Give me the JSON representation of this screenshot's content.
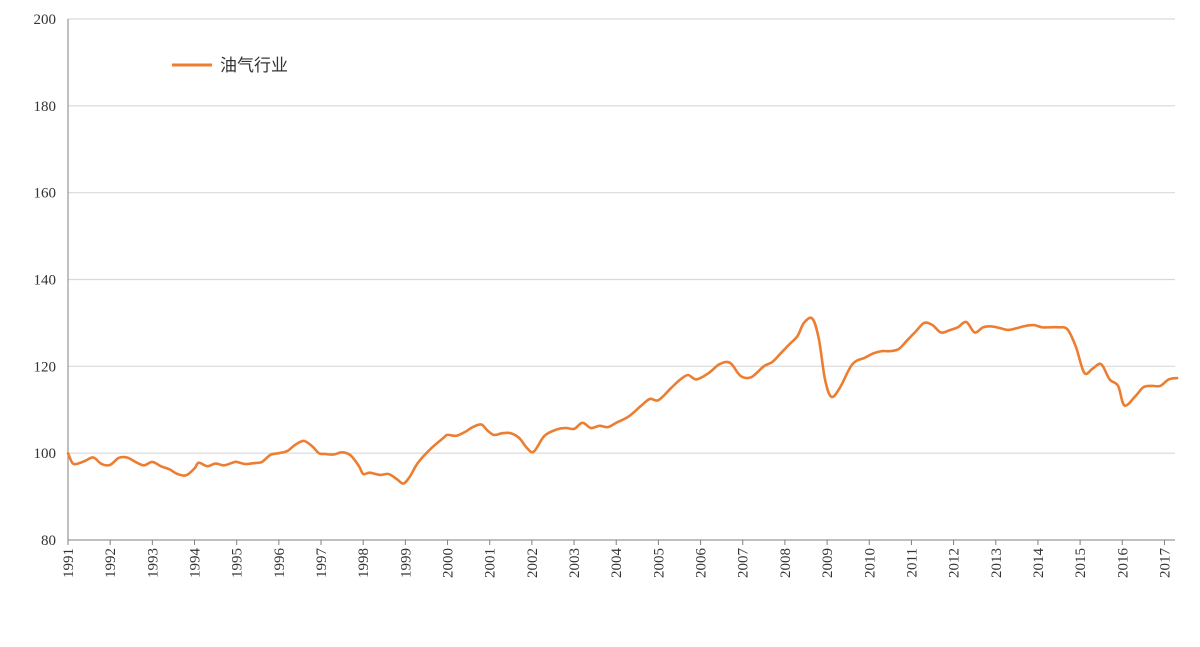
{
  "chart_data": {
    "type": "line",
    "title": "",
    "xlabel": "",
    "ylabel": "",
    "ylim": [
      80,
      200
    ],
    "y_ticks": [
      80,
      100,
      120,
      140,
      160,
      180,
      200
    ],
    "x_tick_labels": [
      "1991",
      "1992",
      "1993",
      "1994",
      "1995",
      "1996",
      "1997",
      "1998",
      "1999",
      "2000",
      "2001",
      "2002",
      "2003",
      "2004",
      "2005",
      "2006",
      "2007",
      "2008",
      "2009",
      "2010",
      "2011",
      "2012",
      "2013",
      "2014",
      "2015",
      "2016",
      "2017"
    ],
    "grid": "horizontal",
    "legend": "top-left",
    "colors": {
      "series": "#ED7D31",
      "grid": "#D9D9D9",
      "axis": "#808080"
    },
    "series": [
      {
        "name": "油气行业",
        "x": [
          1991.0,
          1991.1,
          1991.2,
          1991.4,
          1991.6,
          1991.8,
          1992.0,
          1992.2,
          1992.4,
          1992.6,
          1992.8,
          1993.0,
          1993.2,
          1993.4,
          1993.6,
          1993.8,
          1994.0,
          1994.1,
          1994.3,
          1994.5,
          1994.7,
          1994.9,
          1995.0,
          1995.2,
          1995.4,
          1995.6,
          1995.8,
          1996.0,
          1996.2,
          1996.4,
          1996.6,
          1996.8,
          1996.95,
          1997.1,
          1997.3,
          1997.5,
          1997.7,
          1997.9,
          1998.0,
          1998.15,
          1998.4,
          1998.6,
          1998.8,
          1998.95,
          1999.1,
          1999.3,
          1999.6,
          1999.9,
          2000.0,
          2000.2,
          2000.4,
          2000.6,
          2000.8,
          2000.95,
          2001.1,
          2001.3,
          2001.5,
          2001.7,
          2001.9,
          2002.05,
          2002.3,
          2002.6,
          2002.8,
          2003.0,
          2003.2,
          2003.4,
          2003.6,
          2003.8,
          2004.0,
          2004.3,
          2004.6,
          2004.8,
          2005.0,
          2005.3,
          2005.5,
          2005.7,
          2005.9,
          2006.2,
          2006.45,
          2006.7,
          2006.95,
          2007.2,
          2007.5,
          2007.7,
          2007.9,
          2008.1,
          2008.3,
          2008.45,
          2008.65,
          2008.8,
          2008.95,
          2009.1,
          2009.3,
          2009.6,
          2009.9,
          2010.1,
          2010.3,
          2010.5,
          2010.7,
          2010.9,
          2011.1,
          2011.3,
          2011.5,
          2011.7,
          2011.9,
          2012.1,
          2012.3,
          2012.5,
          2012.7,
          2012.9,
          2013.1,
          2013.3,
          2013.5,
          2013.7,
          2013.9,
          2014.1,
          2014.3,
          2014.5,
          2014.7,
          2014.9,
          2015.1,
          2015.3,
          2015.5,
          2015.7,
          2015.9,
          2016.05,
          2016.3,
          2016.5,
          2016.7,
          2016.9,
          2017.1,
          2017.3
        ],
        "values": [
          100,
          97.8,
          97.5,
          98.2,
          99.0,
          97.5,
          97.3,
          98.9,
          99.0,
          98.0,
          97.2,
          98.0,
          97.0,
          96.3,
          95.2,
          94.9,
          96.5,
          97.8,
          97.0,
          97.6,
          97.2,
          97.8,
          98.0,
          97.5,
          97.7,
          98.0,
          99.6,
          100.0,
          100.5,
          102.0,
          102.8,
          101.5,
          100.0,
          99.8,
          99.7,
          100.2,
          99.5,
          97.0,
          95.2,
          95.5,
          95.0,
          95.2,
          94.0,
          93.0,
          94.5,
          97.8,
          101.0,
          103.5,
          104.2,
          104.0,
          104.8,
          106.0,
          106.6,
          105.2,
          104.2,
          104.6,
          104.6,
          103.5,
          101.0,
          100.4,
          104.0,
          105.5,
          105.8,
          105.6,
          107.0,
          105.8,
          106.3,
          106.0,
          107.0,
          108.5,
          111.0,
          112.5,
          112.2,
          115.0,
          116.8,
          118.0,
          117.0,
          118.5,
          120.5,
          120.8,
          117.8,
          117.5,
          120.0,
          121.0,
          123.0,
          125.0,
          127.0,
          130.0,
          131.0,
          126.5,
          117.0,
          113.0,
          115.0,
          120.5,
          122.0,
          123.0,
          123.5,
          123.5,
          124.0,
          126.0,
          128.0,
          130.0,
          129.5,
          127.8,
          128.3,
          129.0,
          130.2,
          127.8,
          129.0,
          129.2,
          128.8,
          128.4,
          128.8,
          129.3,
          129.5,
          129.0,
          129.0,
          129.0,
          128.5,
          124.5,
          118.5,
          119.5,
          120.5,
          117.0,
          115.5,
          111.0,
          113.0,
          115.2,
          115.5,
          115.5,
          117.0,
          117.3
        ]
      }
    ]
  }
}
